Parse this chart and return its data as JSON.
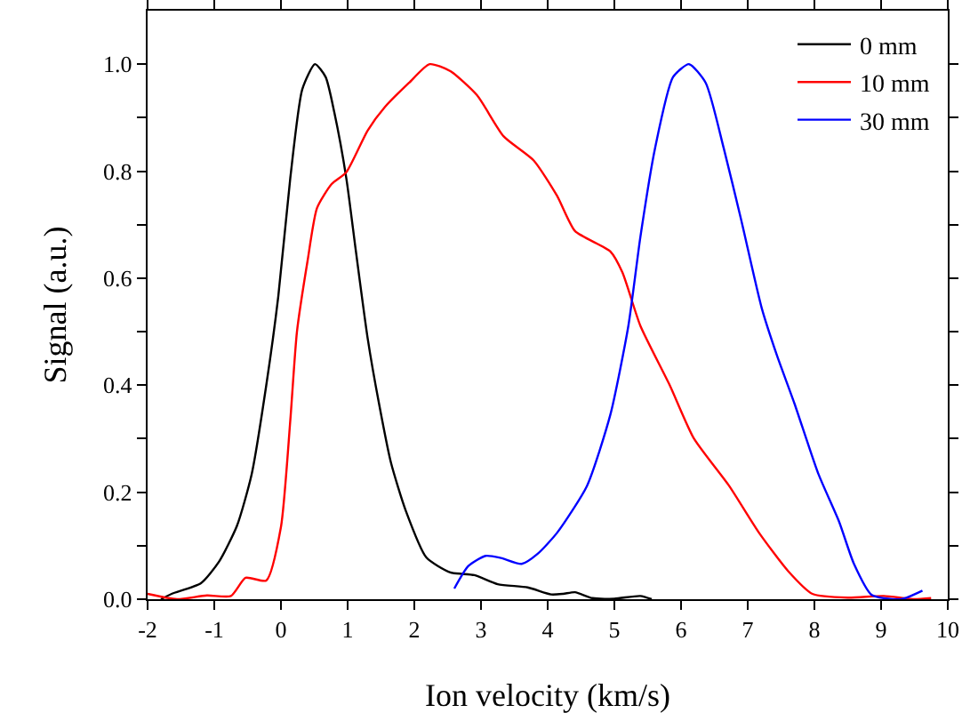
{
  "chart_data": {
    "type": "line",
    "xlabel": "Ion velocity (km/s)",
    "ylabel": "Signal (a.u.)",
    "xlim": [
      -2,
      10
    ],
    "ylim": [
      0,
      1.1
    ],
    "xticks": [
      -2,
      -1,
      0,
      1,
      2,
      3,
      4,
      5,
      6,
      7,
      8,
      9,
      10
    ],
    "yticks": [
      {
        "value": 0,
        "label": "0.0"
      },
      {
        "value": 0.1,
        "label": null
      },
      {
        "value": 0.2,
        "label": "0.2"
      },
      {
        "value": 0.3,
        "label": null
      },
      {
        "value": 0.4,
        "label": "0.4"
      },
      {
        "value": 0.5,
        "label": null
      },
      {
        "value": 0.6,
        "label": "0.6"
      },
      {
        "value": 0.7,
        "label": null
      },
      {
        "value": 0.8,
        "label": "0.8"
      },
      {
        "value": 0.9,
        "label": null
      },
      {
        "value": 1.0,
        "label": "1.0"
      }
    ],
    "grid": false,
    "legend": "top right",
    "marker": "none",
    "line_style": "solid",
    "series": [
      {
        "name": "0 mm",
        "color": "#000000",
        "x": [
          -1.8,
          -1.64,
          -1.2,
          -0.93,
          -0.66,
          -0.44,
          -0.22,
          -0.04,
          0.14,
          0.32,
          0.51,
          0.67,
          0.8,
          0.98,
          1.12,
          1.3,
          1.47,
          1.65,
          1.87,
          2.18,
          2.54,
          2.9,
          3.25,
          3.7,
          4.05,
          4.23,
          4.41,
          4.67,
          5.0,
          5.39,
          5.56
        ],
        "values": [
          0,
          0.01,
          0.03,
          0.07,
          0.137,
          0.233,
          0.4,
          0.566,
          0.787,
          0.953,
          1.0,
          0.976,
          0.91,
          0.787,
          0.654,
          0.488,
          0.366,
          0.255,
          0.166,
          0.078,
          0.05,
          0.045,
          0.028,
          0.022,
          0.009,
          0.01,
          0.013,
          0.002,
          0.001,
          0.006,
          0
        ]
      },
      {
        "name": "10 mm",
        "color": "#ff0000",
        "x": [
          -2,
          -1.56,
          -1.11,
          -0.75,
          -0.53,
          -0.22,
          0,
          0.14,
          0.24,
          0.4,
          0.54,
          0.76,
          0.98,
          1.3,
          1.56,
          1.92,
          2.23,
          2.54,
          2.94,
          3.34,
          3.79,
          4.14,
          4.41,
          4.94,
          5.12,
          5.39,
          5.83,
          6.19,
          6.72,
          7.17,
          7.61,
          7.97,
          8.5,
          9.04,
          9.49,
          9.75
        ],
        "values": [
          0.01,
          0,
          0.007,
          0.006,
          0.04,
          0.035,
          0.135,
          0.334,
          0.5,
          0.633,
          0.731,
          0.776,
          0.798,
          0.876,
          0.92,
          0.965,
          1.0,
          0.987,
          0.942,
          0.865,
          0.82,
          0.754,
          0.688,
          0.65,
          0.611,
          0.511,
          0.4,
          0.301,
          0.212,
          0.124,
          0.052,
          0.01,
          0.003,
          0.006,
          0,
          0.002
        ]
      },
      {
        "name": "30 mm",
        "color": "#0000ff",
        "x": [
          2.6,
          2.81,
          3.07,
          3.3,
          3.61,
          3.85,
          4.14,
          4.59,
          4.94,
          5.21,
          5.39,
          5.61,
          5.88,
          6.12,
          6.37,
          6.64,
          6.9,
          7.21,
          7.44,
          7.7,
          8.06,
          8.37,
          8.59,
          8.86,
          9.3,
          9.62
        ],
        "values": [
          0.02,
          0.062,
          0.081,
          0.077,
          0.066,
          0.085,
          0.124,
          0.212,
          0.345,
          0.511,
          0.677,
          0.843,
          0.976,
          1.0,
          0.965,
          0.843,
          0.71,
          0.544,
          0.455,
          0.366,
          0.234,
          0.145,
          0.067,
          0.008,
          0,
          0.016
        ]
      }
    ]
  }
}
